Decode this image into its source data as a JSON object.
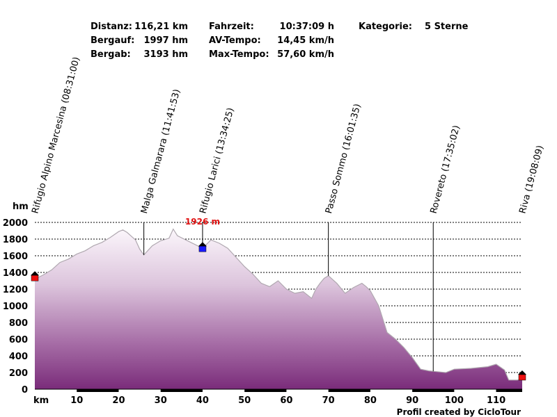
{
  "stats": {
    "distance_label": "Distanz:",
    "distance_value": "116,21 km",
    "climb_label": "Bergauf:",
    "climb_value": "1997 hm",
    "descent_label": "Bergab:",
    "descent_value": "3193 hm",
    "time_label": "Fahrzeit:",
    "time_value": "10:37:09 h",
    "avg_label": "AV-Tempo:",
    "avg_value": "14,45 km/h",
    "max_label": "Max-Tempo:",
    "max_value": "57,60 km/h",
    "category_label": "Kategorie:",
    "category_value": "5 Sterne"
  },
  "footer": {
    "credit": "Profil created by CicloTour"
  },
  "chart_data": {
    "type": "area",
    "xlabel": "km",
    "ylabel": "hm",
    "xlim": [
      0,
      116.21
    ],
    "ylim": [
      0,
      2000
    ],
    "x_ticks": [
      10,
      20,
      30,
      40,
      50,
      60,
      70,
      80,
      90,
      100,
      110
    ],
    "y_ticks": [
      0,
      200,
      400,
      600,
      800,
      1000,
      1200,
      1400,
      1600,
      1800,
      2000
    ],
    "grid": true,
    "profile": {
      "x": [
        0,
        2,
        4,
        6,
        8,
        10,
        12,
        14,
        16,
        18,
        20,
        21,
        22,
        24,
        25,
        26,
        28,
        30,
        32,
        33,
        34,
        36,
        38,
        40,
        41,
        42,
        44,
        46,
        48,
        50,
        52,
        54,
        56,
        58,
        60,
        62,
        64,
        66,
        67,
        68,
        69,
        70,
        72,
        74,
        76,
        78,
        79,
        80,
        82,
        84,
        86,
        88,
        90,
        92,
        94,
        96,
        98,
        100,
        104,
        108,
        110,
        112,
        113,
        115,
        116.21
      ],
      "y": [
        1320,
        1370,
        1430,
        1520,
        1560,
        1620,
        1660,
        1720,
        1760,
        1820,
        1890,
        1910,
        1880,
        1790,
        1680,
        1610,
        1720,
        1780,
        1810,
        1920,
        1840,
        1790,
        1740,
        1690,
        1740,
        1790,
        1750,
        1690,
        1580,
        1470,
        1380,
        1270,
        1230,
        1300,
        1200,
        1150,
        1170,
        1090,
        1200,
        1270,
        1330,
        1360,
        1270,
        1150,
        1220,
        1270,
        1230,
        1180,
        1000,
        680,
        600,
        500,
        380,
        240,
        220,
        210,
        200,
        240,
        250,
        270,
        300,
        230,
        110,
        110,
        120
      ]
    },
    "waypoints": [
      {
        "label": "Rifugio Alpino Marcesina (08:31:00)",
        "km": 0
      },
      {
        "label": "Malga Galmarara (11:41:53)",
        "km": 26
      },
      {
        "label": "Rifugio Larici (13:34:25)",
        "km": 40
      },
      {
        "label": "Passo Sommo (16:01:35)",
        "km": 70
      },
      {
        "label": "Rovereto (17:35:02)",
        "km": 95
      },
      {
        "label": "Riva (19:08:09)",
        "km": 116.21
      }
    ],
    "max_annotation": {
      "label": "1926 m",
      "km": 40
    },
    "markers": [
      {
        "km": 0,
        "elev": 1340,
        "color": "#ee1111"
      },
      {
        "km": 40,
        "elev": 1690,
        "color": "#1a1aff"
      },
      {
        "km": 116.21,
        "elev": 150,
        "color": "#ee1111"
      }
    ]
  }
}
